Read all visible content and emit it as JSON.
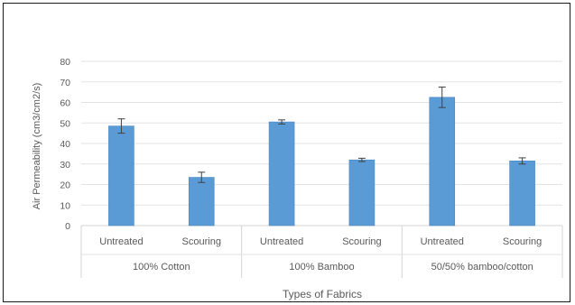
{
  "chart_data": {
    "type": "bar",
    "title": "",
    "xlabel": "Types of Fabrics",
    "ylabel": "Air Permeability (cm3/cm2/s)",
    "ylim": [
      0,
      80
    ],
    "yticks": [
      0,
      10,
      20,
      30,
      40,
      50,
      60,
      70,
      80
    ],
    "grid": true,
    "groups": [
      {
        "label": "100% Cotton",
        "bars": [
          {
            "category": "Untreated",
            "value": 48.5,
            "error": 3.5
          },
          {
            "category": "Scouring",
            "value": 23.5,
            "error": 2.5
          }
        ]
      },
      {
        "label": "100% Bamboo",
        "bars": [
          {
            "category": "Untreated",
            "value": 50.5,
            "error": 1.0
          },
          {
            "category": "Scouring",
            "value": 32.0,
            "error": 0.8
          }
        ]
      },
      {
        "label": "50/50% bamboo/cotton",
        "bars": [
          {
            "category": "Untreated",
            "value": 62.5,
            "error": 5.0
          },
          {
            "category": "Scouring",
            "value": 31.5,
            "error": 1.5
          }
        ]
      }
    ],
    "colors": {
      "bar": "#5b9bd5",
      "bar_edge": "#4a86c0",
      "grid": "#e3e3e3",
      "axis": "#d4d4d4",
      "text": "#595959",
      "error_bar": "#404040"
    }
  }
}
